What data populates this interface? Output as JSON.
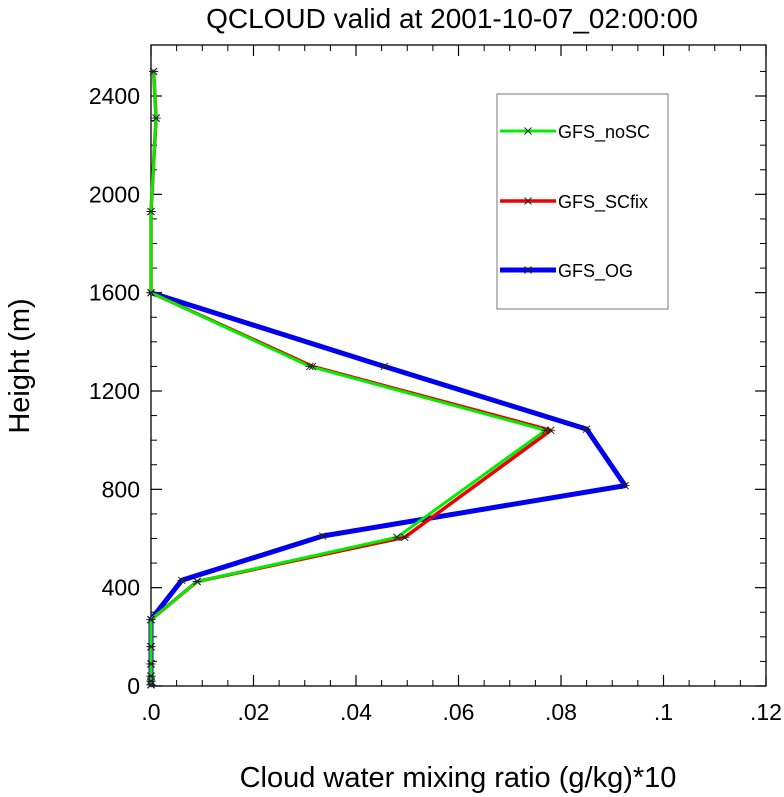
{
  "chart_data": {
    "type": "line",
    "title": "QCLOUD valid at 2001-10-07_02:00:00",
    "xlabel": "Cloud water mixing ratio (g/kg)*10",
    "ylabel": "Height (m)",
    "xlim": [
      0,
      0.12
    ],
    "ylim": [
      0,
      2500
    ],
    "x_major_ticks": [
      0,
      0.02,
      0.04,
      0.06,
      0.08,
      0.1,
      0.12
    ],
    "x_tick_labels": [
      ".0",
      ".02",
      ".04",
      ".06",
      ".08",
      ".1",
      ".12"
    ],
    "y_major_ticks": [
      0,
      400,
      800,
      1200,
      1600,
      2000,
      2400
    ],
    "y_tick_labels": [
      "0",
      "400",
      "800",
      "1200",
      "1600",
      "2000",
      "2400"
    ],
    "legend_position": "top-right",
    "grid": false,
    "series": [
      {
        "name": "GFS_noSC",
        "color": "#00ee00",
        "marker": "x",
        "points": [
          [
            0,
            5
          ],
          [
            0,
            20
          ],
          [
            0,
            40
          ],
          [
            0,
            90
          ],
          [
            0,
            160
          ],
          [
            0,
            270
          ],
          [
            0.009,
            425
          ],
          [
            0.048,
            605
          ],
          [
            0.077,
            1040
          ],
          [
            0.031,
            1300
          ],
          [
            0,
            1600
          ],
          [
            0,
            1930
          ],
          [
            0.001,
            2310
          ],
          [
            0.0005,
            2500
          ]
        ]
      },
      {
        "name": "GFS_SCfix",
        "color": "#ee0000",
        "marker": "x",
        "points": [
          [
            0,
            5
          ],
          [
            0,
            20
          ],
          [
            0,
            40
          ],
          [
            0,
            90
          ],
          [
            0,
            160
          ],
          [
            0,
            270
          ],
          [
            0.009,
            425
          ],
          [
            0.0495,
            605
          ],
          [
            0.078,
            1040
          ],
          [
            0.0315,
            1300
          ],
          [
            0,
            1600
          ],
          [
            0,
            1930
          ],
          [
            0.001,
            2310
          ],
          [
            0.0005,
            2500
          ]
        ]
      },
      {
        "name": "GFS_OG",
        "color": "#0000ee",
        "marker": "x",
        "points": [
          [
            0,
            5
          ],
          [
            0,
            20
          ],
          [
            0,
            40
          ],
          [
            0,
            90
          ],
          [
            0,
            160
          ],
          [
            0,
            270
          ],
          [
            0.006,
            430
          ],
          [
            0.0335,
            610
          ],
          [
            0.0925,
            815
          ],
          [
            0.085,
            1045
          ],
          [
            0.0455,
            1300
          ],
          [
            0,
            1600
          ]
        ]
      }
    ]
  }
}
